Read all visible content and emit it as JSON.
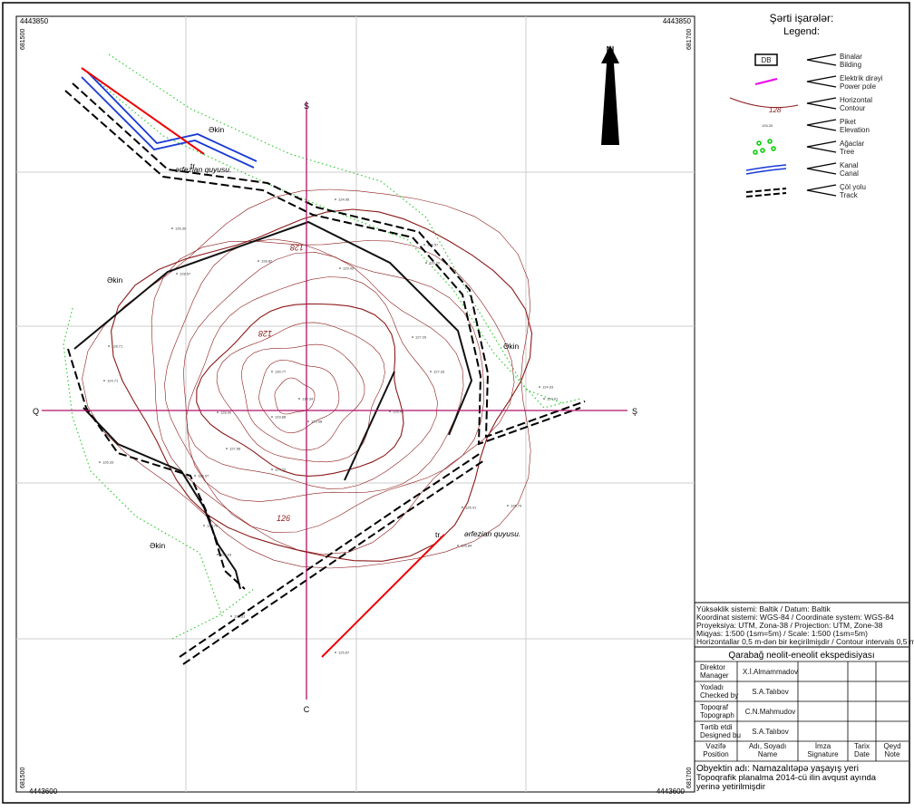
{
  "map": {
    "corners": {
      "top_left": "4443850",
      "top_right": "4443850",
      "bottom_left": "4443600",
      "bottom_right": "4443600",
      "left_top": "681500",
      "left_bottom": "681500",
      "right_top": "681700",
      "right_bottom": "681700"
    },
    "north": "N",
    "axes": {
      "top": "S",
      "bottom": "C",
      "left": "Q",
      "right": "Ş"
    },
    "labels": [
      "Əkin",
      "Əkin",
      "Əkin",
      "Əkin",
      "ərfezian quyusu.",
      "ərfezian quyusu.",
      "tr.",
      "tr."
    ],
    "contour_labels": [
      "128",
      "128",
      "126"
    ],
    "elevations": [
      "126.30",
      "126.57",
      "128.82",
      "129.43",
      "127.29",
      "128.71",
      "130.77",
      "130.34",
      "129.88",
      "129.58",
      "128.00",
      "127.56",
      "127.22",
      "126.42",
      "126.33",
      "125.41",
      "124.91",
      "124.93",
      "126.79",
      "126.20",
      "124.71",
      "124.95",
      "127.33",
      "128.57",
      "125.67",
      "126.37",
      "127.76",
      "128.03",
      "126.84",
      "125.31"
    ]
  },
  "legend": {
    "title": "Şərti işarələr:",
    "subtitle": "Legend:",
    "items": [
      {
        "az": "Binalar",
        "en": "Bilding",
        "symbol": "DB"
      },
      {
        "az": "Elektrik dirəyi",
        "en": "Power pole"
      },
      {
        "az": "Horizontal",
        "en": "Contour",
        "symbol": "128"
      },
      {
        "az": "Piket",
        "en": "Elevation",
        "symbol": "126.29"
      },
      {
        "az": "Ağaclar",
        "en": "Tree"
      },
      {
        "az": "Kanal",
        "en": "Canal"
      },
      {
        "az": "Çöl yolu",
        "en": "Track"
      }
    ]
  },
  "info": [
    "Yüksəklik sistemi: Baltik  /  Datum: Baltik",
    "Koordinat sistemi: WGS-84  /  Coordinate system: WGS-84",
    "Proyeksiya: UTM, Zona-38  /  Projection: UTM, Zone-38",
    "Miqyas:  1:500 (1sm=5m)  /  Scale:  1:500  (1sm=5m)",
    "Horizontallar 0,5 m-dən bir keçirilmişdir /  Contour intervals 0,5  m"
  ],
  "title_block": {
    "expedition": "Qarabağ neolit-eneolit ekspedisiyası",
    "rows": [
      [
        "Direktor",
        "Manager",
        "X.İ.Almammadov"
      ],
      [
        "Yoxladı",
        "Checked by",
        "S.A.Talıbov"
      ],
      [
        "Topoqraf",
        "Topograph",
        "C.N.Mahmudov"
      ],
      [
        "Tərtib etdi",
        "Designed bu",
        "S.A.Talıbov"
      ]
    ],
    "header": [
      [
        "Vəzifə",
        "Position"
      ],
      [
        "Adı, Soyadı",
        "Name"
      ],
      [
        "İmza",
        "Signature"
      ],
      [
        "Tarix",
        "Date"
      ],
      [
        "Qeyd",
        "Note"
      ]
    ],
    "object": [
      "Obyektin adı:   Namazalıtəpə yaşayış yeri",
      "Topoqrafik planalma 2014-cü ilin avqust ayında",
      "yerinə yetirilmişdir"
    ]
  }
}
